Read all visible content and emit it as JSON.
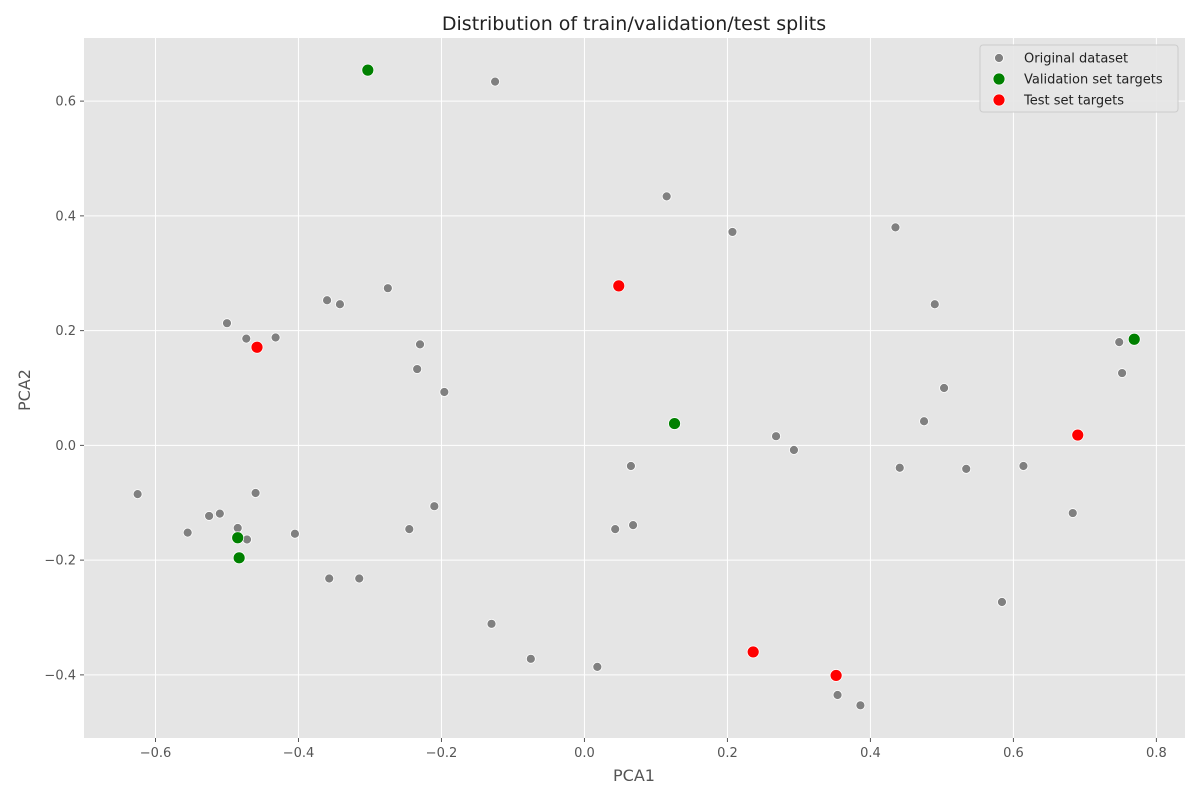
{
  "chart_data": {
    "type": "scatter",
    "title": "Distribution of train/validation/test splits",
    "xlabel": "PCA1",
    "ylabel": "PCA2",
    "xlim": [
      -0.7,
      0.84
    ],
    "ylim": [
      -0.51,
      0.71
    ],
    "xticks": [
      -0.6,
      -0.4,
      -0.2,
      0.0,
      0.2,
      0.4,
      0.6,
      0.8
    ],
    "yticks": [
      -0.4,
      -0.2,
      0.0,
      0.2,
      0.4,
      0.6
    ],
    "xtick_labels": [
      "−0.6",
      "−0.4",
      "−0.2",
      "0.0",
      "0.2",
      "0.4",
      "0.6",
      "0.8"
    ],
    "ytick_labels": [
      "−0.4",
      "−0.2",
      "0.0",
      "0.2",
      "0.4",
      "0.6"
    ],
    "grid": true,
    "style": "ggplot",
    "background_color": "#e5e5e5",
    "grid_color": "#ffffff",
    "legend_position": "top-right",
    "series": [
      {
        "name": "Original dataset",
        "color": "#808080",
        "marker_size": "small",
        "points": [
          [
            -0.125,
            0.634
          ],
          [
            0.115,
            0.434
          ],
          [
            0.207,
            0.372
          ],
          [
            0.435,
            0.38
          ],
          [
            0.49,
            0.246
          ],
          [
            -0.36,
            0.253
          ],
          [
            -0.342,
            0.246
          ],
          [
            -0.275,
            0.274
          ],
          [
            -0.5,
            0.213
          ],
          [
            -0.473,
            0.186
          ],
          [
            -0.432,
            0.188
          ],
          [
            -0.23,
            0.176
          ],
          [
            -0.234,
            0.133
          ],
          [
            -0.196,
            0.093
          ],
          [
            0.503,
            0.1
          ],
          [
            0.748,
            0.18
          ],
          [
            0.752,
            0.126
          ],
          [
            0.475,
            0.042
          ],
          [
            0.268,
            0.016
          ],
          [
            0.293,
            -0.008
          ],
          [
            0.065,
            -0.036
          ],
          [
            0.441,
            -0.039
          ],
          [
            0.534,
            -0.041
          ],
          [
            0.614,
            -0.036
          ],
          [
            -0.625,
            -0.085
          ],
          [
            -0.46,
            -0.083
          ],
          [
            -0.51,
            -0.119
          ],
          [
            -0.525,
            -0.123
          ],
          [
            -0.485,
            -0.144
          ],
          [
            -0.472,
            -0.164
          ],
          [
            -0.555,
            -0.152
          ],
          [
            -0.405,
            -0.154
          ],
          [
            -0.21,
            -0.106
          ],
          [
            -0.245,
            -0.146
          ],
          [
            0.043,
            -0.146
          ],
          [
            0.068,
            -0.139
          ],
          [
            0.683,
            -0.118
          ],
          [
            -0.357,
            -0.232
          ],
          [
            -0.315,
            -0.232
          ],
          [
            0.584,
            -0.273
          ],
          [
            -0.13,
            -0.311
          ],
          [
            -0.075,
            -0.372
          ],
          [
            0.018,
            -0.386
          ],
          [
            0.354,
            -0.435
          ],
          [
            0.386,
            -0.453
          ]
        ]
      },
      {
        "name": "Validation set targets",
        "color": "#008000",
        "marker_size": "large",
        "points": [
          [
            -0.303,
            0.654
          ],
          [
            0.126,
            0.038
          ],
          [
            0.769,
            0.185
          ],
          [
            -0.485,
            -0.161
          ],
          [
            -0.483,
            -0.196
          ]
        ]
      },
      {
        "name": "Test set targets",
        "color": "#ff0000",
        "marker_size": "large",
        "points": [
          [
            0.048,
            0.278
          ],
          [
            -0.458,
            0.171
          ],
          [
            0.69,
            0.018
          ],
          [
            0.236,
            -0.36
          ],
          [
            0.352,
            -0.401
          ]
        ]
      }
    ]
  }
}
